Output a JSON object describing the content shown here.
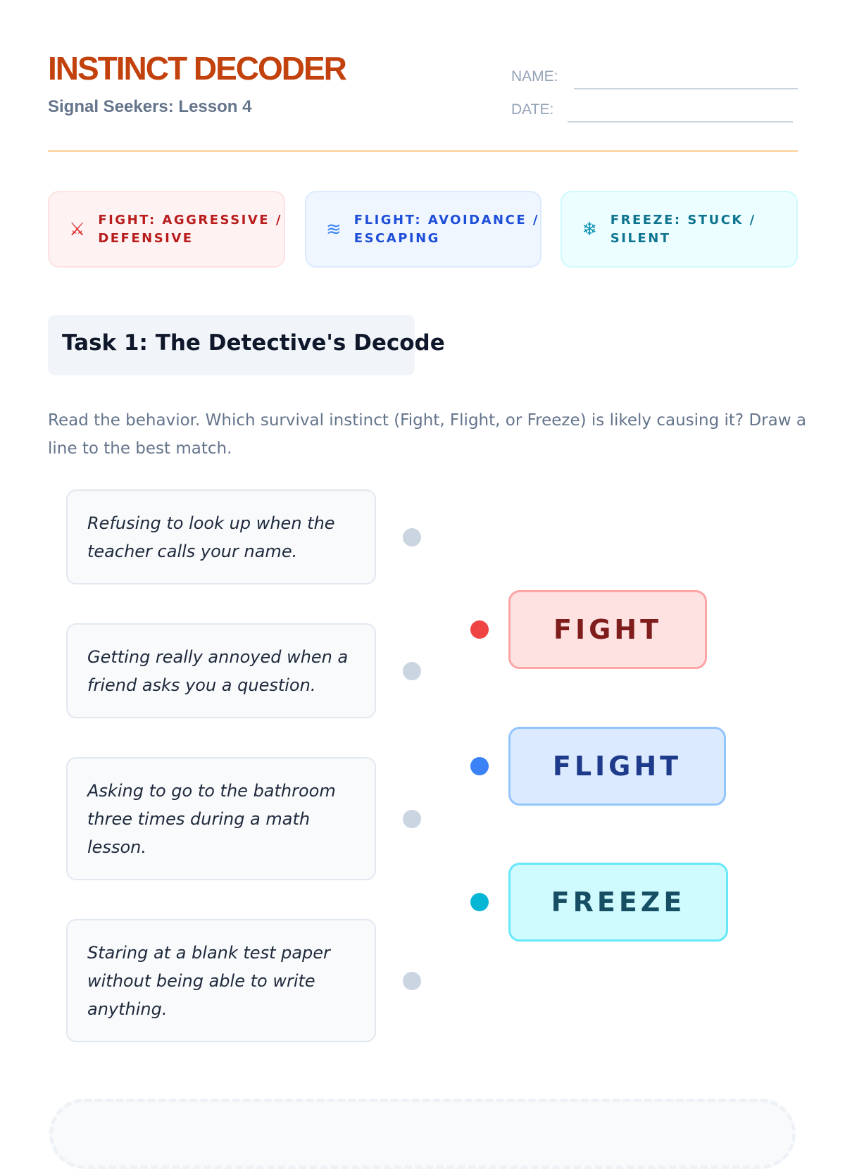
{
  "header": {
    "title": "INSTINCT DECODER",
    "subtitle": "Signal Seekers: Lesson 4",
    "name_label": "NAME:",
    "date_label": "DATE:"
  },
  "legend": [
    {
      "label": "FIGHT: AGGRESSIVE / DEFENSIVE",
      "icon": "crossed-swords-icon",
      "color": "#b91c1c"
    },
    {
      "label": "FLIGHT: AVOIDANCE / ESCAPING",
      "icon": "wind-icon",
      "color": "#1d4ed8"
    },
    {
      "label": "FREEZE: STUCK / SILENT",
      "icon": "snowflake-icon",
      "color": "#0e7490"
    }
  ],
  "task": {
    "title": "Task 1: The Detective's Decode",
    "instructions": "Read the behavior. Which survival instinct (Fight, Flight, or Freeze) is likely causing it? Draw a line to the best match."
  },
  "behaviors": [
    "Refusing to look up when the teacher calls your name.",
    "Getting really annoyed when a friend asks you a question.",
    "Asking to go to the bathroom three times during a math lesson.",
    "Staring at a blank test paper without being able to write anything."
  ],
  "answers": [
    {
      "label": "FIGHT",
      "color": "#ef4444"
    },
    {
      "label": "FLIGHT",
      "color": "#3b82f6"
    },
    {
      "label": "FREEZE",
      "color": "#06b6d4"
    }
  ]
}
